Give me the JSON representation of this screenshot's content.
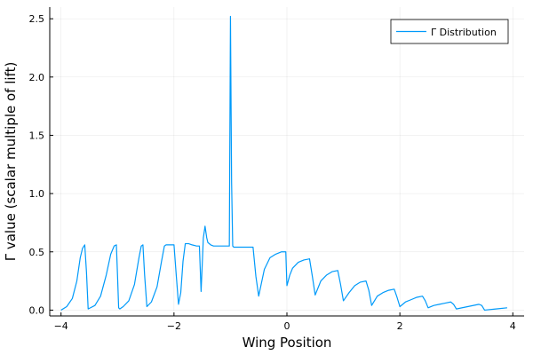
{
  "chart_data": {
    "type": "line",
    "xlabel": "Wing Position",
    "ylabel": "Γ value (scalar multiple of lift)",
    "xlim": [
      -4.2,
      4.2
    ],
    "ylim": [
      -0.05,
      2.6
    ],
    "xticks": [
      -4,
      -2,
      0,
      2,
      4
    ],
    "xtick_labels": [
      "−4",
      "−2",
      "0",
      "2",
      "4"
    ],
    "yticks": [
      0.0,
      0.5,
      1.0,
      1.5,
      2.0,
      2.5
    ],
    "ytick_labels": [
      "0.0",
      "0.5",
      "1.0",
      "1.5",
      "2.0",
      "2.5"
    ],
    "grid": true,
    "legend_position": "top-right",
    "series": [
      {
        "name": "Γ Distribution",
        "color": "#009AFA",
        "x": [
          -4.0,
          -3.9,
          -3.8,
          -3.72,
          -3.66,
          -3.62,
          -3.58,
          -3.55,
          -3.52,
          -3.4,
          -3.3,
          -3.2,
          -3.12,
          -3.06,
          -3.02,
          -3.0,
          -2.98,
          -2.96,
          -2.9,
          -2.8,
          -2.7,
          -2.62,
          -2.58,
          -2.55,
          -2.52,
          -2.48,
          -2.4,
          -2.3,
          -2.22,
          -2.17,
          -2.14,
          -2.08,
          -2.0,
          -1.96,
          -1.92,
          -1.88,
          -1.84,
          -1.8,
          -1.74,
          -1.68,
          -1.6,
          -1.55,
          -1.52,
          -1.48,
          -1.45,
          -1.42,
          -1.4,
          -1.35,
          -1.3,
          -1.2,
          -1.1,
          -1.02,
          -1.0,
          -0.98,
          -0.96,
          -0.94,
          -0.9,
          -0.8,
          -0.7,
          -0.6,
          -0.55,
          -0.5,
          -0.4,
          -0.3,
          -0.2,
          -0.1,
          -0.02,
          0.0,
          0.05,
          0.1,
          0.2,
          0.3,
          0.4,
          0.45,
          0.5,
          0.6,
          0.7,
          0.8,
          0.9,
          0.95,
          1.0,
          1.1,
          1.2,
          1.3,
          1.4,
          1.45,
          1.5,
          1.6,
          1.7,
          1.8,
          1.9,
          1.95,
          2.0,
          2.1,
          2.2,
          2.3,
          2.4,
          2.45,
          2.5,
          2.6,
          2.7,
          2.8,
          2.9,
          2.95,
          3.0,
          3.2,
          3.4,
          3.45,
          3.5,
          3.7,
          3.9
        ],
        "y": [
          0.0,
          0.03,
          0.1,
          0.25,
          0.45,
          0.53,
          0.56,
          0.33,
          0.01,
          0.04,
          0.12,
          0.3,
          0.48,
          0.55,
          0.56,
          0.3,
          0.02,
          0.01,
          0.03,
          0.08,
          0.22,
          0.45,
          0.55,
          0.56,
          0.3,
          0.03,
          0.07,
          0.2,
          0.42,
          0.55,
          0.56,
          0.56,
          0.56,
          0.3,
          0.05,
          0.15,
          0.42,
          0.57,
          0.57,
          0.56,
          0.55,
          0.55,
          0.16,
          0.62,
          0.72,
          0.62,
          0.58,
          0.56,
          0.55,
          0.55,
          0.55,
          0.55,
          2.52,
          1.1,
          0.55,
          0.54,
          0.54,
          0.54,
          0.54,
          0.54,
          0.29,
          0.12,
          0.35,
          0.45,
          0.48,
          0.5,
          0.5,
          0.21,
          0.3,
          0.36,
          0.41,
          0.43,
          0.44,
          0.29,
          0.13,
          0.25,
          0.3,
          0.33,
          0.34,
          0.22,
          0.08,
          0.15,
          0.21,
          0.24,
          0.25,
          0.17,
          0.04,
          0.12,
          0.15,
          0.17,
          0.18,
          0.11,
          0.03,
          0.07,
          0.09,
          0.11,
          0.12,
          0.08,
          0.02,
          0.04,
          0.05,
          0.06,
          0.07,
          0.05,
          0.01,
          0.03,
          0.05,
          0.04,
          0.0,
          0.01,
          0.02
        ]
      }
    ]
  }
}
